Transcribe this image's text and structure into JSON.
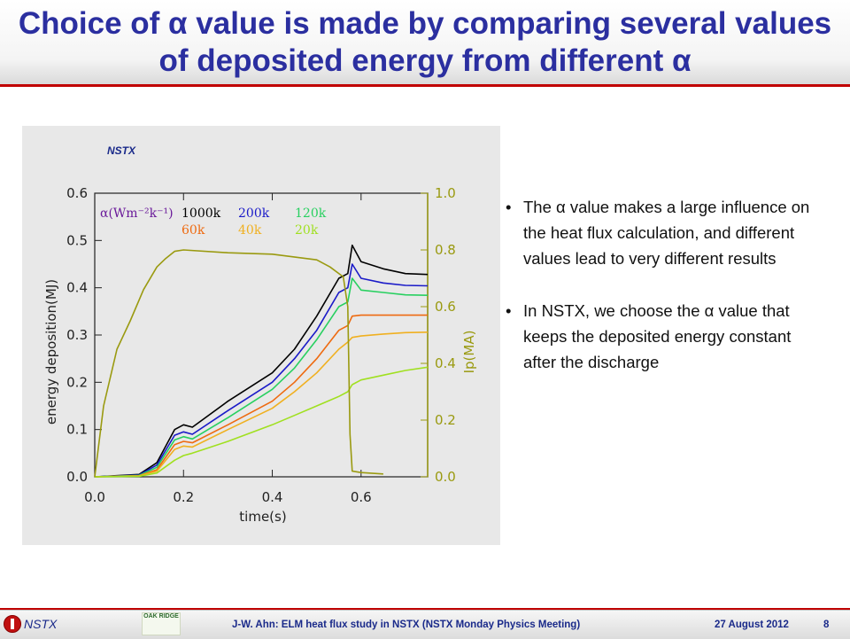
{
  "slide": {
    "title": "Choice of α value is made by comparing several values of deposited energy from different α"
  },
  "bullets": [
    {
      "text": "The α value makes a large influence on the heat flux calculation, and different values lead to very different results"
    },
    {
      "text": "In NSTX, we choose the α value that keeps the deposited energy constant after the discharge"
    }
  ],
  "footer": {
    "left": "NSTX",
    "logo_text": "OAK RIDGE",
    "center": "J-W. Ahn: ELM heat flux study in NSTX (NSTX Monday Physics Meeting)",
    "date": "27 August 2012",
    "page": "8"
  },
  "chart_data": {
    "type": "line",
    "title": "NSTX",
    "xlabel": "time(s)",
    "ylabel": "energy deposition(MJ)",
    "y2label": "Ip(MA)",
    "xlim": [
      0.0,
      0.75
    ],
    "ylim": [
      0.0,
      0.6
    ],
    "y2lim": [
      0.0,
      1.0
    ],
    "xticks": [
      "0.0",
      "0.2",
      "0.4",
      "0.6"
    ],
    "yticks": [
      "0.0",
      "0.1",
      "0.2",
      "0.3",
      "0.4",
      "0.5",
      "0.6"
    ],
    "y2ticks": [
      "0.0",
      "0.2",
      "0.4",
      "0.6",
      "0.8",
      "1.0"
    ],
    "legend_title": "α(Wm⁻²k⁻¹)",
    "grid": false,
    "background": "#e8e8e8",
    "series": [
      {
        "name": "1000k",
        "color": "#000000",
        "x": [
          0.0,
          0.1,
          0.14,
          0.18,
          0.2,
          0.22,
          0.3,
          0.4,
          0.45,
          0.5,
          0.55,
          0.57,
          0.58,
          0.6,
          0.65,
          0.7,
          0.75
        ],
        "y": [
          0.0,
          0.005,
          0.03,
          0.1,
          0.11,
          0.105,
          0.16,
          0.22,
          0.27,
          0.34,
          0.42,
          0.43,
          0.49,
          0.455,
          0.44,
          0.43,
          0.428
        ]
      },
      {
        "name": "200k",
        "color": "#1a1ac8",
        "x": [
          0.0,
          0.1,
          0.14,
          0.18,
          0.2,
          0.22,
          0.3,
          0.4,
          0.45,
          0.5,
          0.55,
          0.57,
          0.58,
          0.6,
          0.65,
          0.7,
          0.75
        ],
        "y": [
          0.0,
          0.004,
          0.025,
          0.088,
          0.095,
          0.09,
          0.14,
          0.2,
          0.25,
          0.31,
          0.39,
          0.4,
          0.45,
          0.42,
          0.41,
          0.405,
          0.404
        ]
      },
      {
        "name": "120k",
        "color": "#28d060",
        "x": [
          0.0,
          0.1,
          0.14,
          0.18,
          0.2,
          0.22,
          0.3,
          0.4,
          0.45,
          0.5,
          0.55,
          0.57,
          0.58,
          0.6,
          0.65,
          0.7,
          0.75
        ],
        "y": [
          0.0,
          0.003,
          0.02,
          0.078,
          0.085,
          0.08,
          0.125,
          0.185,
          0.23,
          0.29,
          0.36,
          0.37,
          0.42,
          0.395,
          0.39,
          0.385,
          0.384
        ]
      },
      {
        "name": "60k",
        "color": "#ee6a10",
        "x": [
          0.0,
          0.1,
          0.14,
          0.18,
          0.2,
          0.22,
          0.3,
          0.4,
          0.45,
          0.5,
          0.55,
          0.57,
          0.58,
          0.6,
          0.65,
          0.7,
          0.75
        ],
        "y": [
          0.0,
          0.002,
          0.015,
          0.068,
          0.075,
          0.072,
          0.11,
          0.16,
          0.2,
          0.25,
          0.31,
          0.32,
          0.34,
          0.342,
          0.342,
          0.342,
          0.342
        ]
      },
      {
        "name": "40k",
        "color": "#f0b020",
        "x": [
          0.0,
          0.1,
          0.14,
          0.18,
          0.2,
          0.22,
          0.3,
          0.4,
          0.45,
          0.5,
          0.55,
          0.57,
          0.58,
          0.6,
          0.65,
          0.7,
          0.75
        ],
        "y": [
          0.0,
          0.002,
          0.012,
          0.058,
          0.065,
          0.063,
          0.1,
          0.145,
          0.18,
          0.22,
          0.27,
          0.285,
          0.295,
          0.298,
          0.302,
          0.305,
          0.306
        ]
      },
      {
        "name": "20k",
        "color": "#a0e020",
        "x": [
          0.0,
          0.1,
          0.14,
          0.18,
          0.2,
          0.22,
          0.3,
          0.4,
          0.45,
          0.5,
          0.55,
          0.57,
          0.58,
          0.6,
          0.65,
          0.7,
          0.75
        ],
        "y": [
          0.0,
          0.001,
          0.008,
          0.035,
          0.045,
          0.05,
          0.075,
          0.11,
          0.13,
          0.15,
          0.17,
          0.18,
          0.195,
          0.205,
          0.215,
          0.225,
          0.232
        ]
      },
      {
        "name": "Ip",
        "color": "#9a9a10",
        "axis": "y2",
        "x": [
          0.0,
          0.02,
          0.05,
          0.08,
          0.11,
          0.14,
          0.16,
          0.18,
          0.2,
          0.3,
          0.4,
          0.5,
          0.53,
          0.56,
          0.57,
          0.575,
          0.58,
          0.6,
          0.65
        ],
        "y": [
          0.0,
          0.25,
          0.45,
          0.55,
          0.66,
          0.74,
          0.77,
          0.795,
          0.8,
          0.79,
          0.785,
          0.765,
          0.74,
          0.705,
          0.6,
          0.15,
          0.02,
          0.015,
          0.01
        ]
      }
    ]
  }
}
